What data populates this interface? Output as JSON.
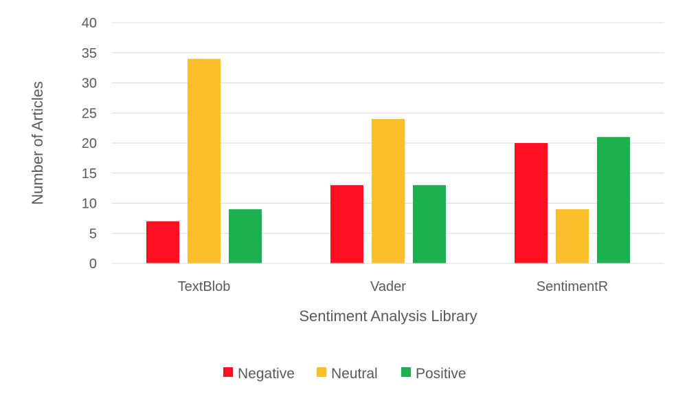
{
  "chart_data": {
    "type": "bar",
    "title": "",
    "xlabel": "Sentiment Analysis Library",
    "ylabel": "Number of Articles",
    "categories": [
      "TextBlob",
      "Vader",
      "SentimentR"
    ],
    "series": [
      {
        "name": "Negative",
        "color": "#ff0f1f",
        "values": [
          7,
          13,
          20
        ]
      },
      {
        "name": "Neutral",
        "color": "#fdbf2d",
        "values": [
          34,
          24,
          9
        ]
      },
      {
        "name": "Positive",
        "color": "#1cb050",
        "values": [
          9,
          13,
          21
        ]
      }
    ],
    "ylim": [
      0,
      40
    ],
    "yticks": [
      0,
      5,
      10,
      15,
      20,
      25,
      30,
      35,
      40
    ],
    "grid": true,
    "legend_position": "bottom"
  }
}
